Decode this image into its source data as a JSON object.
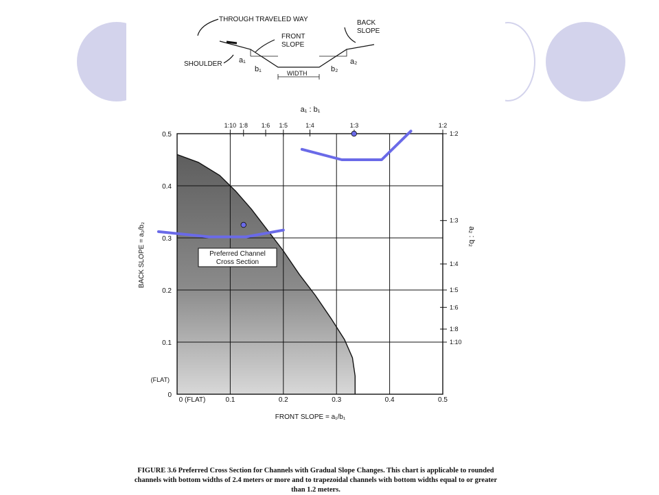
{
  "chart_data": {
    "type": "area",
    "xlabel": "FRONT SLOPE = a₁/b₁",
    "ylabel": "BACK SLOPE = a₂/b₂",
    "top_axis_label": "a₁ : b₁",
    "right_axis_label": "a₂ : b₂",
    "xlim": [
      0,
      0.5
    ],
    "ylim": [
      0,
      0.5
    ],
    "grid": true,
    "x_ticks": [
      {
        "value": 0,
        "label": "0 (FLAT)"
      },
      {
        "value": 0.1,
        "label": "0.1"
      },
      {
        "value": 0.2,
        "label": "0.2"
      },
      {
        "value": 0.3,
        "label": "0.3"
      },
      {
        "value": 0.4,
        "label": "0.4"
      },
      {
        "value": 0.5,
        "label": "0.5"
      }
    ],
    "y_ticks": [
      {
        "value": 0,
        "label": "0"
      },
      {
        "value": 0.1,
        "label": "0.1"
      },
      {
        "value": 0.2,
        "label": "0.2"
      },
      {
        "value": 0.3,
        "label": "0.3"
      },
      {
        "value": 0.4,
        "label": "0.4"
      },
      {
        "value": 0.5,
        "label": "0.5"
      }
    ],
    "y_flat_label": "(FLAT)",
    "top_ticks": [
      {
        "value": 0.1,
        "label": "1:10"
      },
      {
        "value": 0.125,
        "label": "1:8"
      },
      {
        "value": 0.1667,
        "label": "1:6"
      },
      {
        "value": 0.2,
        "label": "1:5"
      },
      {
        "value": 0.25,
        "label": "1:4"
      },
      {
        "value": 0.3333,
        "label": "1:3"
      },
      {
        "value": 0.5,
        "label": "1:2"
      }
    ],
    "right_ticks": [
      {
        "value": 0.5,
        "label": "1:2"
      },
      {
        "value": 0.3333,
        "label": "1:3"
      },
      {
        "value": 0.25,
        "label": "1:4"
      },
      {
        "value": 0.2,
        "label": "1:5"
      },
      {
        "value": 0.1667,
        "label": "1:6"
      },
      {
        "value": 0.125,
        "label": "1:8"
      },
      {
        "value": 0.1,
        "label": "1:10"
      }
    ],
    "region": {
      "label_line1": "Preferred Channel",
      "label_line2": "Cross Section",
      "boundary": [
        [
          0,
          0.46
        ],
        [
          0.04,
          0.445
        ],
        [
          0.08,
          0.42
        ],
        [
          0.11,
          0.39
        ],
        [
          0.14,
          0.355
        ],
        [
          0.17,
          0.315
        ],
        [
          0.2,
          0.275
        ],
        [
          0.23,
          0.23
        ],
        [
          0.26,
          0.19
        ],
        [
          0.29,
          0.145
        ],
        [
          0.315,
          0.105
        ],
        [
          0.33,
          0.07
        ],
        [
          0.335,
          0.035
        ],
        [
          0.335,
          0
        ]
      ]
    },
    "annotation_lines": [
      {
        "color": "#6a6ae8",
        "points": [
          [
            -0.035,
            0.312
          ],
          [
            0.06,
            0.302
          ],
          [
            0.13,
            0.302
          ],
          [
            0.2,
            0.315
          ]
        ]
      },
      {
        "color": "#6a6ae8",
        "points": [
          [
            0.235,
            0.47
          ],
          [
            0.31,
            0.45
          ],
          [
            0.385,
            0.45
          ],
          [
            0.44,
            0.505
          ]
        ]
      }
    ],
    "annotation_points": [
      {
        "color": "#6a6ae8",
        "x": 0.125,
        "y": 0.325
      },
      {
        "color": "#6a6ae8",
        "x": 0.333,
        "y": 0.5
      }
    ]
  },
  "cross_section": {
    "through_traveled_way": "THROUGH TRAVELED WAY",
    "back_slope_1": "BACK",
    "back_slope_2": "SLOPE",
    "front_slope_1": "FRONT",
    "front_slope_2": "SLOPE",
    "shoulder": "SHOULDER",
    "width": "WIDTH",
    "a1": "a₁",
    "b1": "b₁",
    "a2": "a₂",
    "b2": "b₂"
  },
  "caption": "FIGURE 3.6 Preferred Cross Section for Channels with Gradual Slope Changes. This chart is applicable to rounded channels with bottom widths of 2.4 meters or more and to trapezoidal channels with bottom widths equal to or greater than 1.2 meters.",
  "colors": {
    "decoration": "#d3d3ec",
    "highlight": "#6a6ae8",
    "shade": "#8a8a8a"
  }
}
